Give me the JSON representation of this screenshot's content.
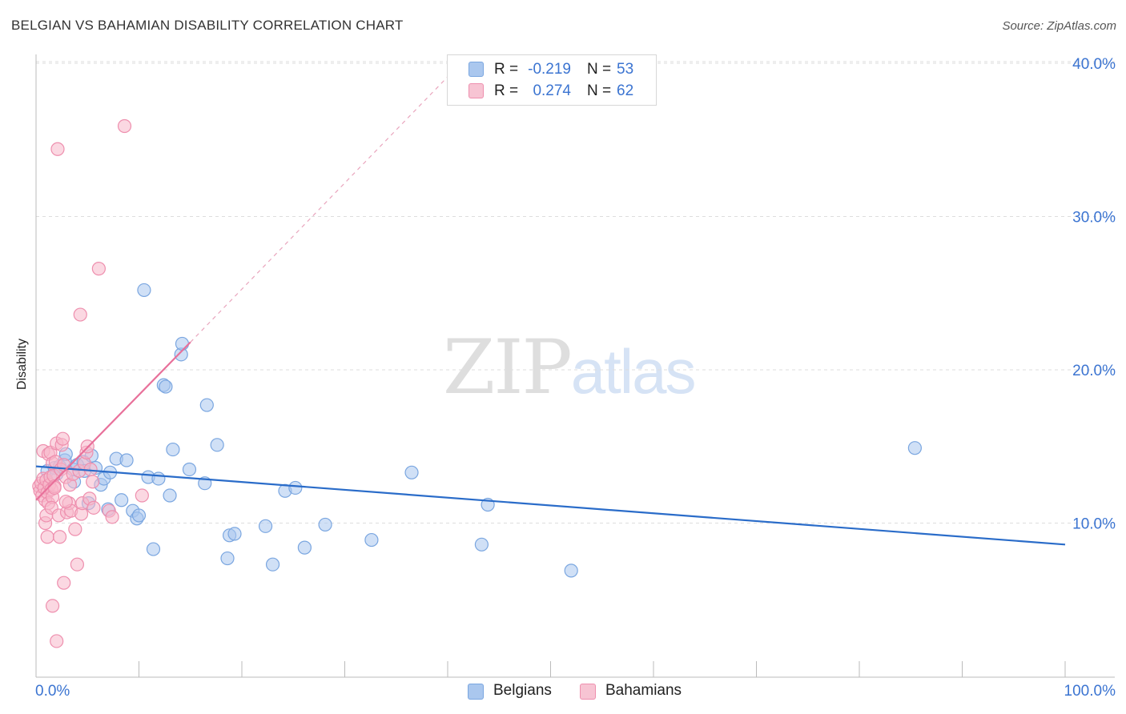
{
  "title": "BELGIAN VS BAHAMIAN DISABILITY CORRELATION CHART",
  "source": "Source: ZipAtlas.com",
  "watermark": {
    "zip": "ZIP",
    "atlas": "atlas"
  },
  "legend": {
    "rows": [
      {
        "r_label": "R =",
        "r_value": "-0.219",
        "n_label": "N =",
        "n_value": "53"
      },
      {
        "r_label": "R =",
        "r_value": "0.274",
        "n_label": "N =",
        "n_value": "62"
      }
    ]
  },
  "bottom_legend": [
    "Belgians",
    "Bahamians"
  ],
  "colors": {
    "belgians_fill": "#aac7ee",
    "belgians_stroke": "#7aa6e0",
    "belgians_line": "#2a6cc9",
    "bahamians_fill": "#f7b8cb",
    "bahamians_stroke": "#ee8fae",
    "bahamians_line": "#e8709a",
    "grid": "#dddddd",
    "tick_label": "#3b74d1"
  },
  "chart_data": {
    "type": "scatter",
    "title": "BELGIAN VS BAHAMIAN DISABILITY CORRELATION CHART",
    "xlabel": "",
    "ylabel": "Disability",
    "xlim": [
      0,
      100
    ],
    "ylim": [
      0,
      41
    ],
    "x_tick_labels": [
      "0.0%",
      "100.0%"
    ],
    "y_ticks": [
      10,
      20,
      30,
      40
    ],
    "y_tick_labels": [
      "10.0%",
      "20.0%",
      "30.0%",
      "40.0%"
    ],
    "grid": true,
    "series": [
      {
        "name": "Belgians",
        "r": -0.219,
        "n": 53,
        "trend": {
          "x": [
            0,
            100
          ],
          "y": [
            13.7,
            8.6
          ],
          "dashed_extension": false
        },
        "points": [
          [
            1.1,
            13.4
          ],
          [
            1.8,
            13.6
          ],
          [
            2.3,
            13.7
          ],
          [
            2.8,
            14.1
          ],
          [
            2.9,
            14.5
          ],
          [
            3.6,
            13.5
          ],
          [
            3.7,
            12.7
          ],
          [
            4.0,
            13.8
          ],
          [
            4.6,
            14.0
          ],
          [
            4.7,
            13.4
          ],
          [
            5.4,
            14.4
          ],
          [
            5.8,
            13.6
          ],
          [
            6.3,
            12.5
          ],
          [
            6.6,
            12.9
          ],
          [
            5.1,
            11.3
          ],
          [
            7.2,
            13.3
          ],
          [
            7.8,
            14.2
          ],
          [
            8.3,
            11.5
          ],
          [
            8.8,
            14.1
          ],
          [
            7.0,
            10.9
          ],
          [
            9.4,
            10.8
          ],
          [
            9.8,
            10.3
          ],
          [
            10.0,
            10.5
          ],
          [
            10.5,
            25.2
          ],
          [
            10.9,
            13.0
          ],
          [
            11.4,
            8.3
          ],
          [
            11.9,
            12.9
          ],
          [
            12.4,
            19.0
          ],
          [
            12.6,
            18.9
          ],
          [
            13.0,
            11.8
          ],
          [
            13.3,
            14.8
          ],
          [
            14.1,
            21.0
          ],
          [
            14.2,
            21.7
          ],
          [
            14.9,
            13.5
          ],
          [
            16.4,
            12.6
          ],
          [
            16.6,
            17.7
          ],
          [
            17.6,
            15.1
          ],
          [
            18.6,
            7.7
          ],
          [
            18.8,
            9.2
          ],
          [
            19.3,
            9.3
          ],
          [
            22.3,
            9.8
          ],
          [
            23.0,
            7.3
          ],
          [
            24.2,
            12.1
          ],
          [
            25.2,
            12.3
          ],
          [
            26.1,
            8.4
          ],
          [
            28.1,
            9.9
          ],
          [
            32.6,
            8.9
          ],
          [
            36.5,
            13.3
          ],
          [
            43.3,
            8.6
          ],
          [
            43.9,
            11.2
          ],
          [
            52.0,
            6.9
          ],
          [
            85.4,
            14.9
          ],
          [
            2.0,
            13.2
          ]
        ]
      },
      {
        "name": "Bahamians",
        "r": 0.274,
        "n": 62,
        "trend": {
          "x": [
            0,
            15
          ],
          "y": [
            11.5,
            21.8
          ],
          "dashed_extension": true,
          "dashed_to": {
            "x": 42,
            "y": 40.5
          }
        },
        "points": [
          [
            0.3,
            12.4
          ],
          [
            0.4,
            12.1
          ],
          [
            0.5,
            12.6
          ],
          [
            0.6,
            11.8
          ],
          [
            0.7,
            12.9
          ],
          [
            0.8,
            12.3
          ],
          [
            0.9,
            11.5
          ],
          [
            1.0,
            12.8
          ],
          [
            1.1,
            12.0
          ],
          [
            1.2,
            11.3
          ],
          [
            1.3,
            12.5
          ],
          [
            1.4,
            13.0
          ],
          [
            1.5,
            12.2
          ],
          [
            1.6,
            11.7
          ],
          [
            1.7,
            13.1
          ],
          [
            1.8,
            12.4
          ],
          [
            0.7,
            14.7
          ],
          [
            0.9,
            10.0
          ],
          [
            1.0,
            10.5
          ],
          [
            1.1,
            9.1
          ],
          [
            1.2,
            14.5
          ],
          [
            1.4,
            14.6
          ],
          [
            1.5,
            11.0
          ],
          [
            1.6,
            13.9
          ],
          [
            1.8,
            12.3
          ],
          [
            1.9,
            14.0
          ],
          [
            2.0,
            15.2
          ],
          [
            2.2,
            10.5
          ],
          [
            2.3,
            9.1
          ],
          [
            2.4,
            13.5
          ],
          [
            2.5,
            15.1
          ],
          [
            2.6,
            15.5
          ],
          [
            2.7,
            13.8
          ],
          [
            2.9,
            13.0
          ],
          [
            3.0,
            10.7
          ],
          [
            3.2,
            11.3
          ],
          [
            3.3,
            12.5
          ],
          [
            3.4,
            10.8
          ],
          [
            3.6,
            13.2
          ],
          [
            3.8,
            9.6
          ],
          [
            4.0,
            7.3
          ],
          [
            4.2,
            13.4
          ],
          [
            4.4,
            10.6
          ],
          [
            4.5,
            11.3
          ],
          [
            4.7,
            13.9
          ],
          [
            4.9,
            14.6
          ],
          [
            5.0,
            15.0
          ],
          [
            5.2,
            11.6
          ],
          [
            5.3,
            13.5
          ],
          [
            5.5,
            12.7
          ],
          [
            5.6,
            11.0
          ],
          [
            7.1,
            10.8
          ],
          [
            7.4,
            10.4
          ],
          [
            8.6,
            35.9
          ],
          [
            10.3,
            11.8
          ],
          [
            6.1,
            26.6
          ],
          [
            4.3,
            23.6
          ],
          [
            2.1,
            34.4
          ],
          [
            2.0,
            2.3
          ],
          [
            1.6,
            4.6
          ],
          [
            2.7,
            6.1
          ],
          [
            2.9,
            11.4
          ]
        ]
      }
    ]
  }
}
